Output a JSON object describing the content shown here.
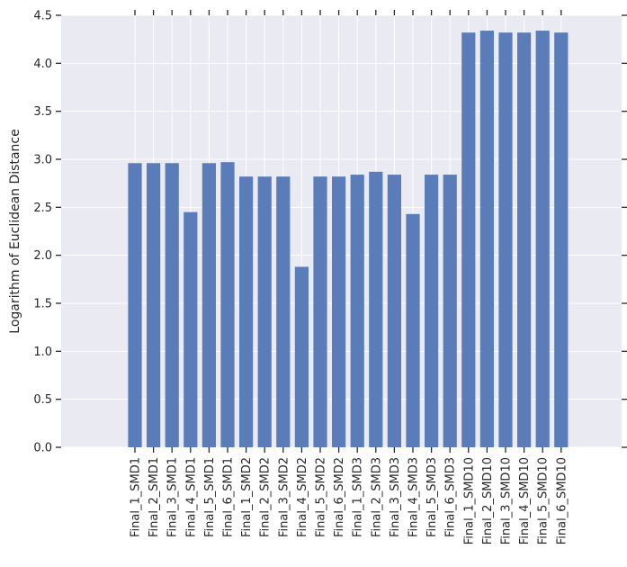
{
  "chart_data": {
    "type": "bar",
    "title": "",
    "xlabel": "",
    "ylabel": "Logarithm of Euclidean Distance",
    "ylim": [
      0,
      4.5
    ],
    "yticks": [
      "0.0",
      "0.5",
      "1.0",
      "1.5",
      "2.0",
      "2.5",
      "3.0",
      "3.5",
      "4.0",
      "4.5"
    ],
    "grid": true,
    "categories": [
      "Final_1_SMD1",
      "Final_2_SMD1",
      "Final_3_SMD1",
      "Final_4_SMD1",
      "Final_5_SMD1",
      "Final_6_SMD1",
      "Final_1_SMD2",
      "Final_2_SMD2",
      "Final_3_SMD2",
      "Final_4_SMD2",
      "Final_5_SMD2",
      "Final_6_SMD2",
      "Final_1_SMD3",
      "Final_2_SMD3",
      "Final_3_SMD3",
      "Final_4_SMD3",
      "Final_5_SMD3",
      "Final_6_SMD3",
      "Final_1_SMD10",
      "Final_2_SMD10",
      "Final_3_SMD10",
      "Final_4_SMD10",
      "Final_5_SMD10",
      "Final_6_SMD10"
    ],
    "values": [
      2.96,
      2.96,
      2.96,
      2.45,
      2.96,
      2.97,
      2.82,
      2.82,
      2.82,
      1.88,
      2.82,
      2.82,
      2.84,
      2.87,
      2.84,
      2.43,
      2.84,
      2.84,
      4.32,
      4.34,
      4.32,
      4.32,
      4.34,
      4.32
    ],
    "colors": {
      "bar": "#5a7cb8",
      "plot_background": "#eaeaf2",
      "grid": "#ffffff",
      "text": "#262626",
      "tick": "#262626"
    }
  }
}
